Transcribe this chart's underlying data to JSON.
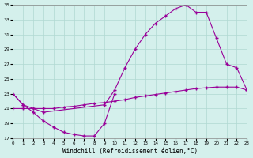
{
  "xlabel": "Windchill (Refroidissement éolien,°C)",
  "background_color": "#d4f0ec",
  "grid_color": "#b0d8d2",
  "line_color": "#990099",
  "xlim": [
    0,
    23
  ],
  "ylim": [
    17,
    35
  ],
  "yticks": [
    17,
    19,
    21,
    23,
    25,
    27,
    29,
    31,
    33,
    35
  ],
  "xticks": [
    0,
    1,
    2,
    3,
    4,
    5,
    6,
    7,
    8,
    9,
    10,
    11,
    12,
    13,
    14,
    15,
    16,
    17,
    18,
    19,
    20,
    21,
    22,
    23
  ],
  "series": [
    {
      "x": [
        0,
        1,
        2,
        3,
        4,
        5,
        6,
        7,
        8,
        9,
        10
      ],
      "y": [
        23.0,
        21.5,
        20.5,
        19.3,
        18.5,
        17.8,
        17.5,
        17.3,
        17.3,
        19.0,
        23.0
      ]
    },
    {
      "x": [
        0,
        1,
        2,
        3,
        9,
        10,
        11,
        12,
        13,
        14,
        15,
        16,
        17,
        18,
        19,
        20,
        21,
        22,
        23
      ],
      "y": [
        23.0,
        21.5,
        21.0,
        20.5,
        21.5,
        23.5,
        26.5,
        29.0,
        31.0,
        32.5,
        33.5,
        34.5,
        35.0,
        34.0,
        34.0,
        30.5,
        27.0,
        26.5,
        23.5
      ]
    },
    {
      "x": [
        0,
        1,
        2,
        3,
        4,
        5,
        6,
        7,
        8,
        9,
        10,
        11,
        12,
        13,
        14,
        15,
        16,
        17,
        18,
        19,
        20,
        21,
        22,
        23
      ],
      "y": [
        21.0,
        21.0,
        21.0,
        21.0,
        21.0,
        21.2,
        21.3,
        21.5,
        21.7,
        21.8,
        22.0,
        22.2,
        22.5,
        22.7,
        22.9,
        23.1,
        23.3,
        23.5,
        23.7,
        23.8,
        23.9,
        23.9,
        23.9,
        23.5
      ]
    }
  ]
}
